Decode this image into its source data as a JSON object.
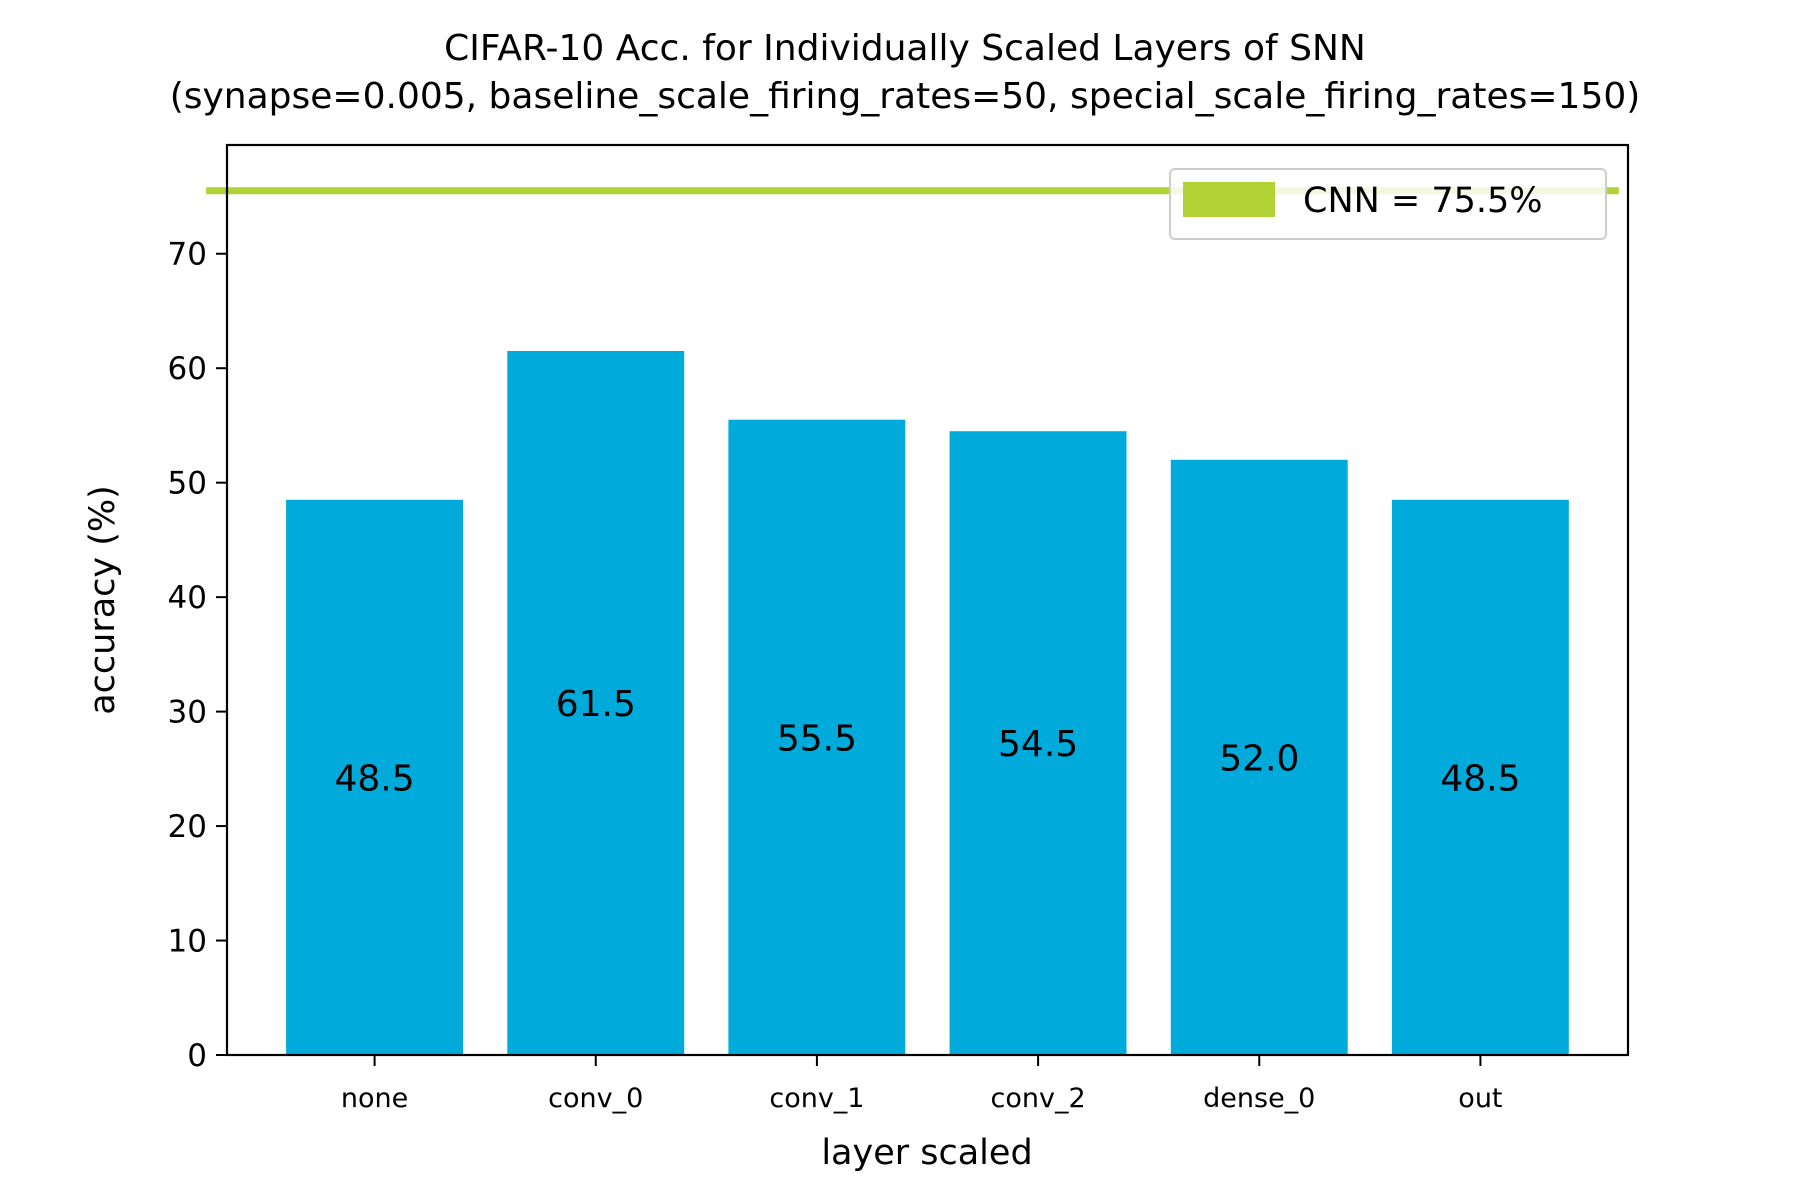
{
  "chart_data": {
    "type": "bar",
    "title": "CIFAR-10 Acc. for Individually Scaled Layers of SNN",
    "subtitle": "(synapse=0.005, baseline_scale_firing_rates=50, special_scale_firing_rates=150)",
    "xlabel": "layer scaled",
    "ylabel": "accuracy (%)",
    "categories": [
      "none",
      "conv_0",
      "conv_1",
      "conv_2",
      "dense_0",
      "out"
    ],
    "values": [
      48.5,
      61.5,
      55.5,
      54.5,
      52.0,
      48.5
    ],
    "value_labels": [
      "48.5",
      "61.5",
      "55.5",
      "54.5",
      "52.0",
      "48.5"
    ],
    "ylim": [
      0,
      79.5
    ],
    "yticks": [
      0,
      10,
      20,
      30,
      40,
      50,
      60,
      70
    ],
    "reference_line": {
      "label": "CNN = 75.5%",
      "value": 75.5
    },
    "legend_position": "top-right",
    "grid": false,
    "colors": {
      "bar": "#00aadb",
      "reference": "#b2d235"
    }
  }
}
